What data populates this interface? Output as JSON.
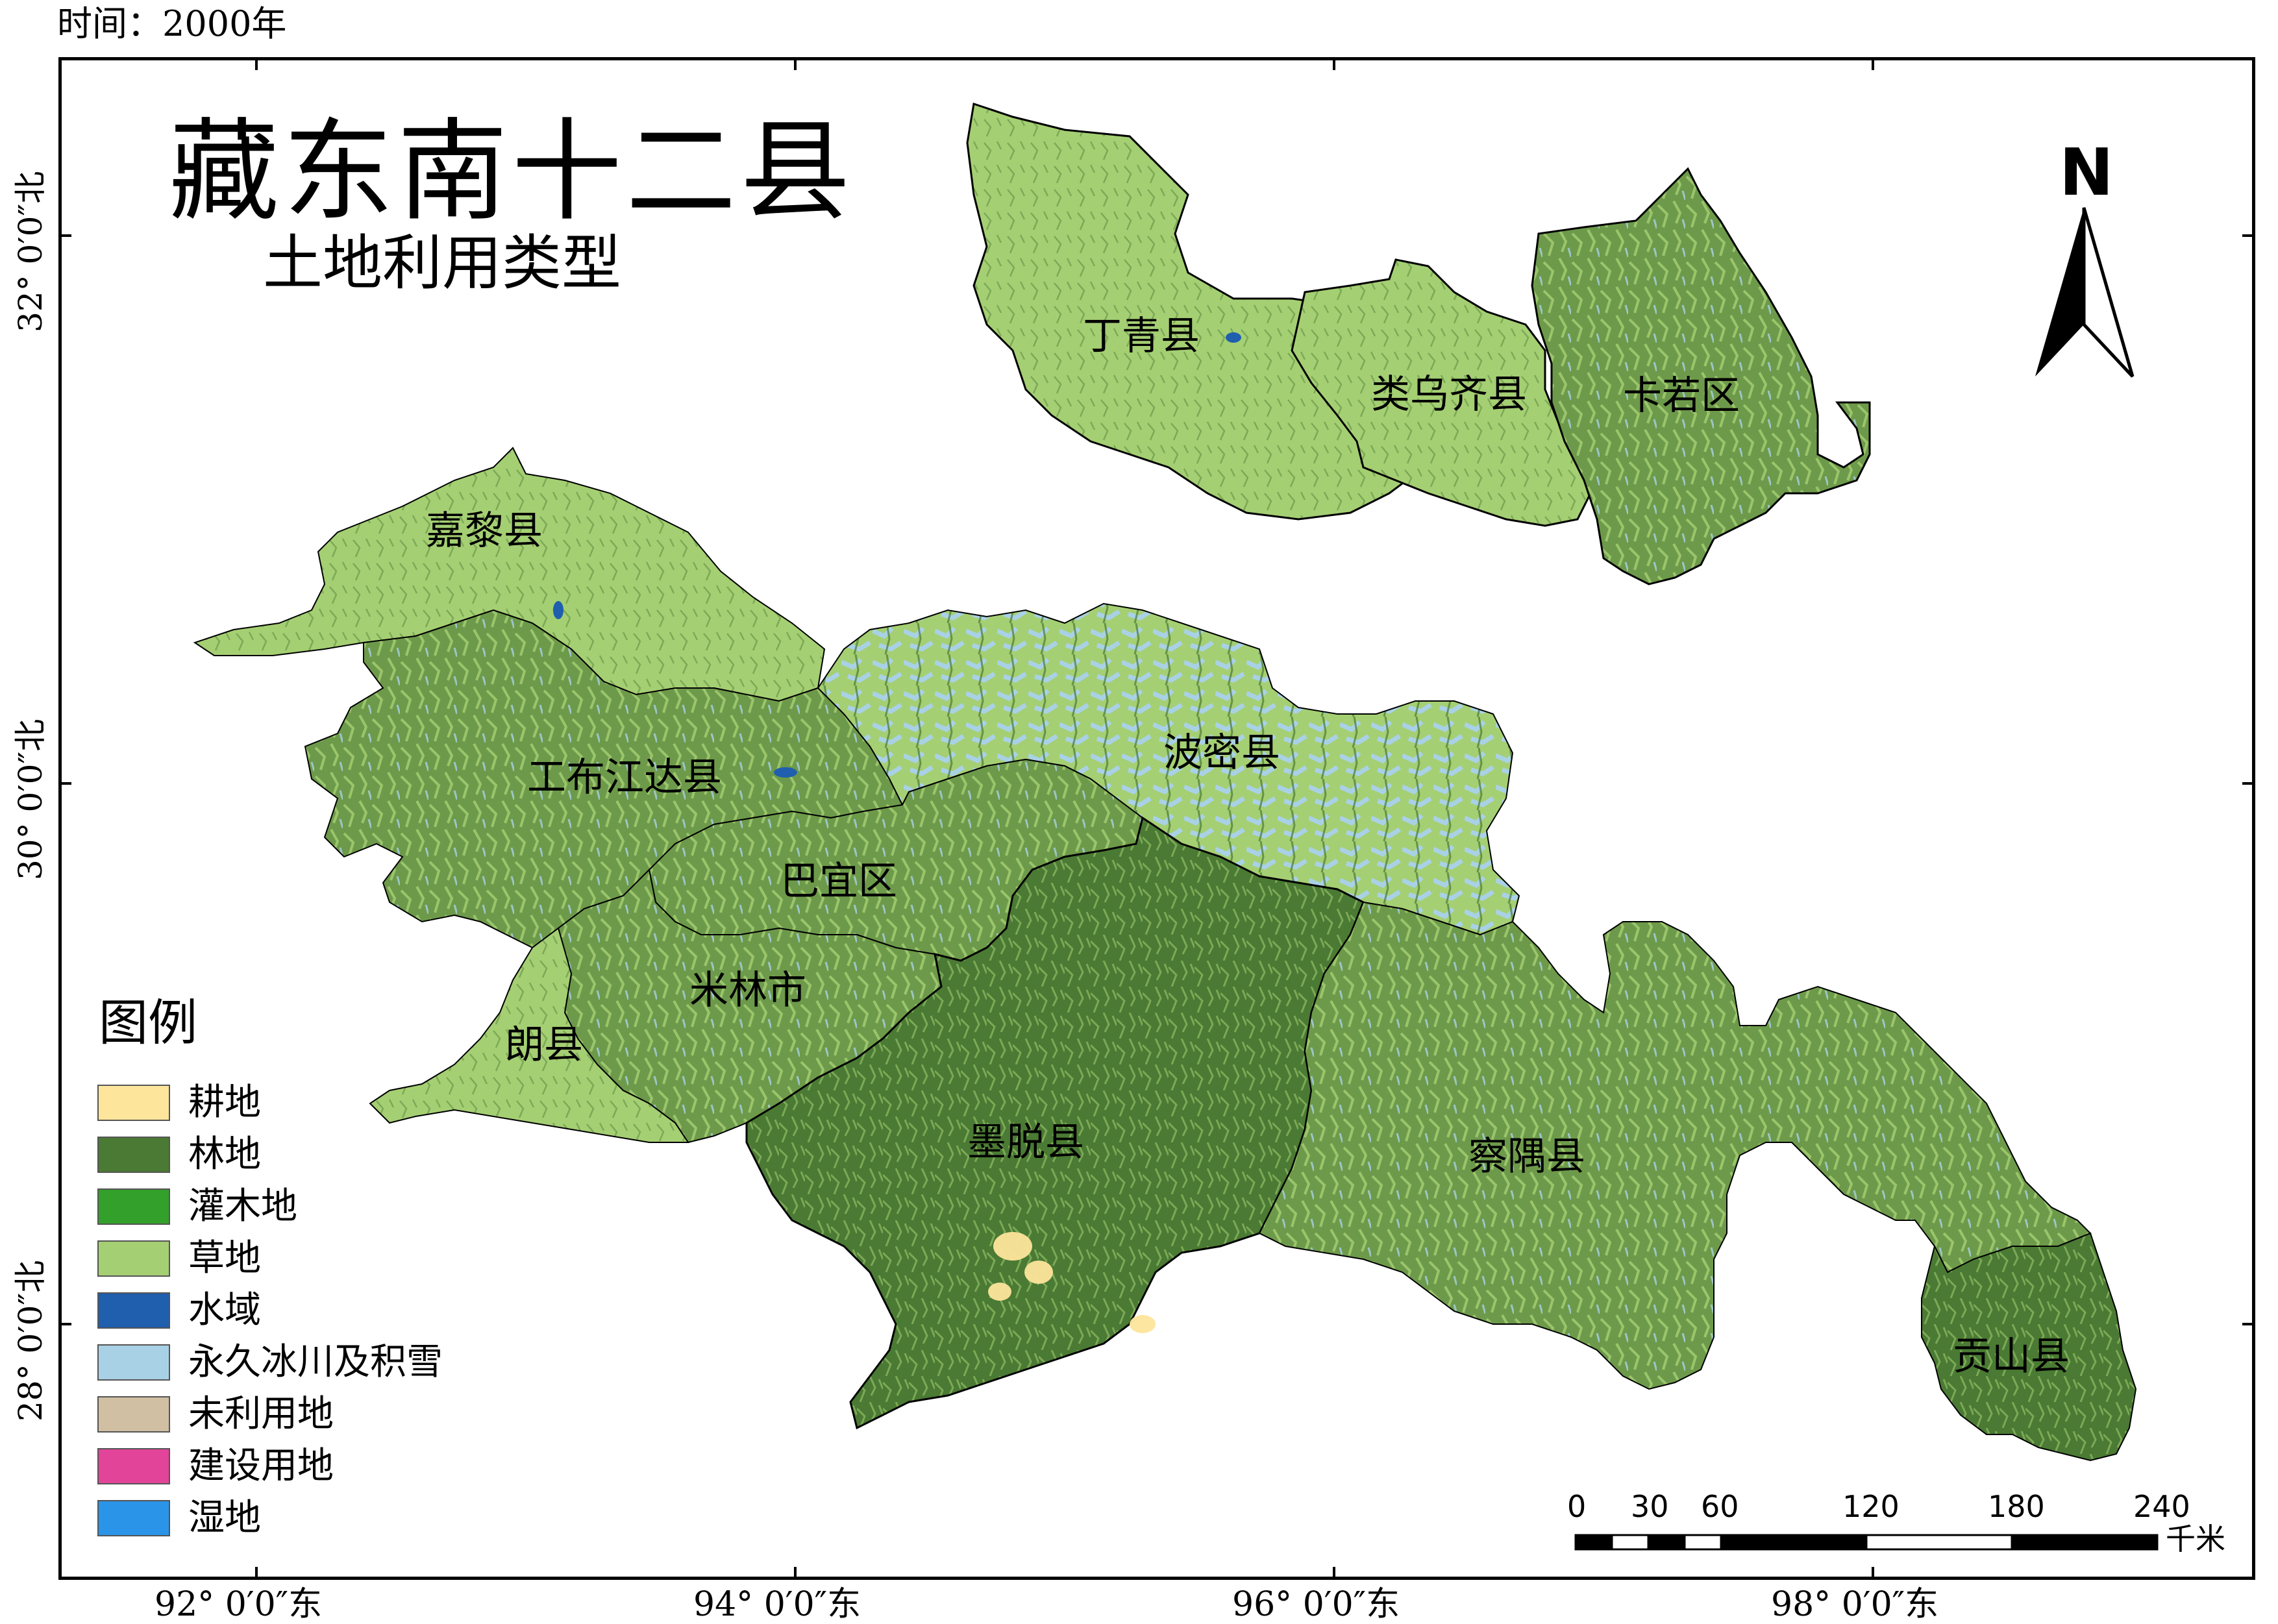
{
  "time_label": "时间：2000年",
  "title": "藏东南十二县",
  "subtitle": "土地利用类型",
  "north_arrow_label": "N",
  "counties": [
    {
      "name": "丁青县"
    },
    {
      "name": "类乌齐县"
    },
    {
      "name": "卡若区"
    },
    {
      "name": "嘉黎县"
    },
    {
      "name": "工布江达县"
    },
    {
      "name": "波密县"
    },
    {
      "name": "巴宜区"
    },
    {
      "name": "米林市"
    },
    {
      "name": "朗县"
    },
    {
      "name": "墨脱县"
    },
    {
      "name": "察隅县"
    },
    {
      "name": "贡山县"
    }
  ],
  "latitude_labels": [
    "32° 0′0″北",
    "30° 0′0″北",
    "28° 0′0″北"
  ],
  "longitude_labels": [
    "92° 0′0″东",
    "94° 0′0″东",
    "96° 0′0″东",
    "98° 0′0″东"
  ],
  "legend": {
    "title": "图例",
    "items": [
      {
        "label": "耕地",
        "color": "#fde59b"
      },
      {
        "label": "林地",
        "color": "#4a7a33"
      },
      {
        "label": "灌木地",
        "color": "#34a02c"
      },
      {
        "label": "草地",
        "color": "#a5cf73"
      },
      {
        "label": "水域",
        "color": "#1f5fae"
      },
      {
        "label": "永久冰川及积雪",
        "color": "#a9d1e6"
      },
      {
        "label": "未利用地",
        "color": "#d1bfa3"
      },
      {
        "label": "建设用地",
        "color": "#e2449a"
      },
      {
        "label": "湿地",
        "color": "#2a95e8"
      }
    ]
  },
  "scale_bar": {
    "ticks": [
      "0",
      "30",
      "60",
      "120",
      "180",
      "240"
    ],
    "unit": "千米"
  }
}
